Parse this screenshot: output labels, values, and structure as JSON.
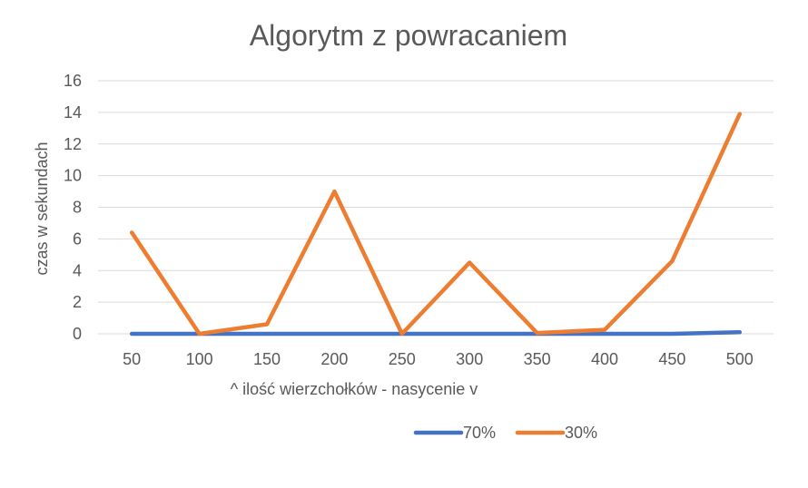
{
  "chart_data": {
    "type": "line",
    "title": "Algorytm z powracaniem",
    "xlabel": "^ ilość wierzchołków  - nasycenie v",
    "ylabel": "czas w sekundach",
    "categories": [
      "50",
      "100",
      "150",
      "200",
      "250",
      "300",
      "350",
      "400",
      "450",
      "500"
    ],
    "y_ticks": [
      "0",
      "2",
      "4",
      "6",
      "8",
      "10",
      "12",
      "14",
      "16"
    ],
    "ylim": [
      0,
      16
    ],
    "grid": true,
    "legend_position": "bottom",
    "series": [
      {
        "name": "70%",
        "color": "#4472C4",
        "values": [
          0,
          0,
          0,
          0,
          0,
          0,
          0,
          0,
          0,
          0.1
        ]
      },
      {
        "name": "30%",
        "color": "#ED7D31",
        "values": [
          6.4,
          0,
          0.6,
          9.0,
          0,
          4.5,
          0.05,
          0.25,
          4.6,
          13.9
        ]
      }
    ]
  }
}
